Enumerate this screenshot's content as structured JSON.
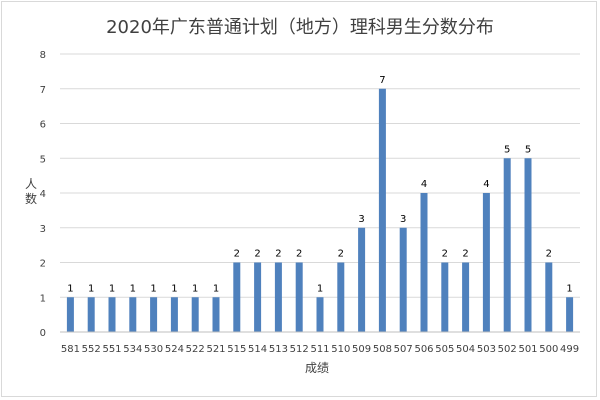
{
  "chart_data": {
    "type": "bar",
    "title": "2020年广东普通计划（地方）理科男生分数分布",
    "xlabel": "成绩",
    "ylabel": "人数",
    "categories": [
      "581",
      "552",
      "551",
      "534",
      "530",
      "524",
      "522",
      "521",
      "515",
      "514",
      "513",
      "512",
      "511",
      "510",
      "509",
      "508",
      "507",
      "506",
      "505",
      "504",
      "503",
      "502",
      "501",
      "500",
      "499"
    ],
    "values": [
      1,
      1,
      1,
      1,
      1,
      1,
      1,
      1,
      2,
      2,
      2,
      2,
      1,
      2,
      3,
      7,
      3,
      4,
      2,
      2,
      4,
      5,
      5,
      2,
      1
    ],
    "ylim": [
      0,
      8
    ],
    "yticks": [
      0,
      1,
      2,
      3,
      4,
      5,
      6,
      7,
      8
    ],
    "grid": true,
    "bar_color": "#4f81bd",
    "grid_color": "#d9d9d9",
    "data_labels": true
  }
}
